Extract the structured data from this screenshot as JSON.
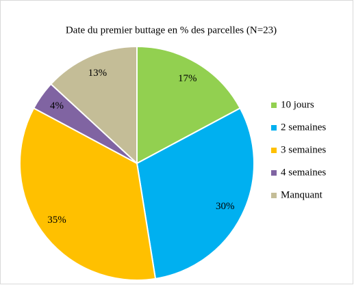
{
  "chart_data": {
    "type": "pie",
    "title": "Date du premier buttage en % des parcelles (N=23)",
    "categories": [
      "10 jours",
      "2 semaines",
      "3 semaines",
      "4 semaines",
      "Manquant"
    ],
    "values": [
      17,
      30,
      35,
      4,
      13
    ],
    "value_labels": [
      "17%",
      "30%",
      "35%",
      "4%",
      "13%"
    ],
    "colors": [
      "#92d050",
      "#00b0f0",
      "#ffc000",
      "#8064a2",
      "#c4bd97"
    ],
    "legend": "right"
  }
}
